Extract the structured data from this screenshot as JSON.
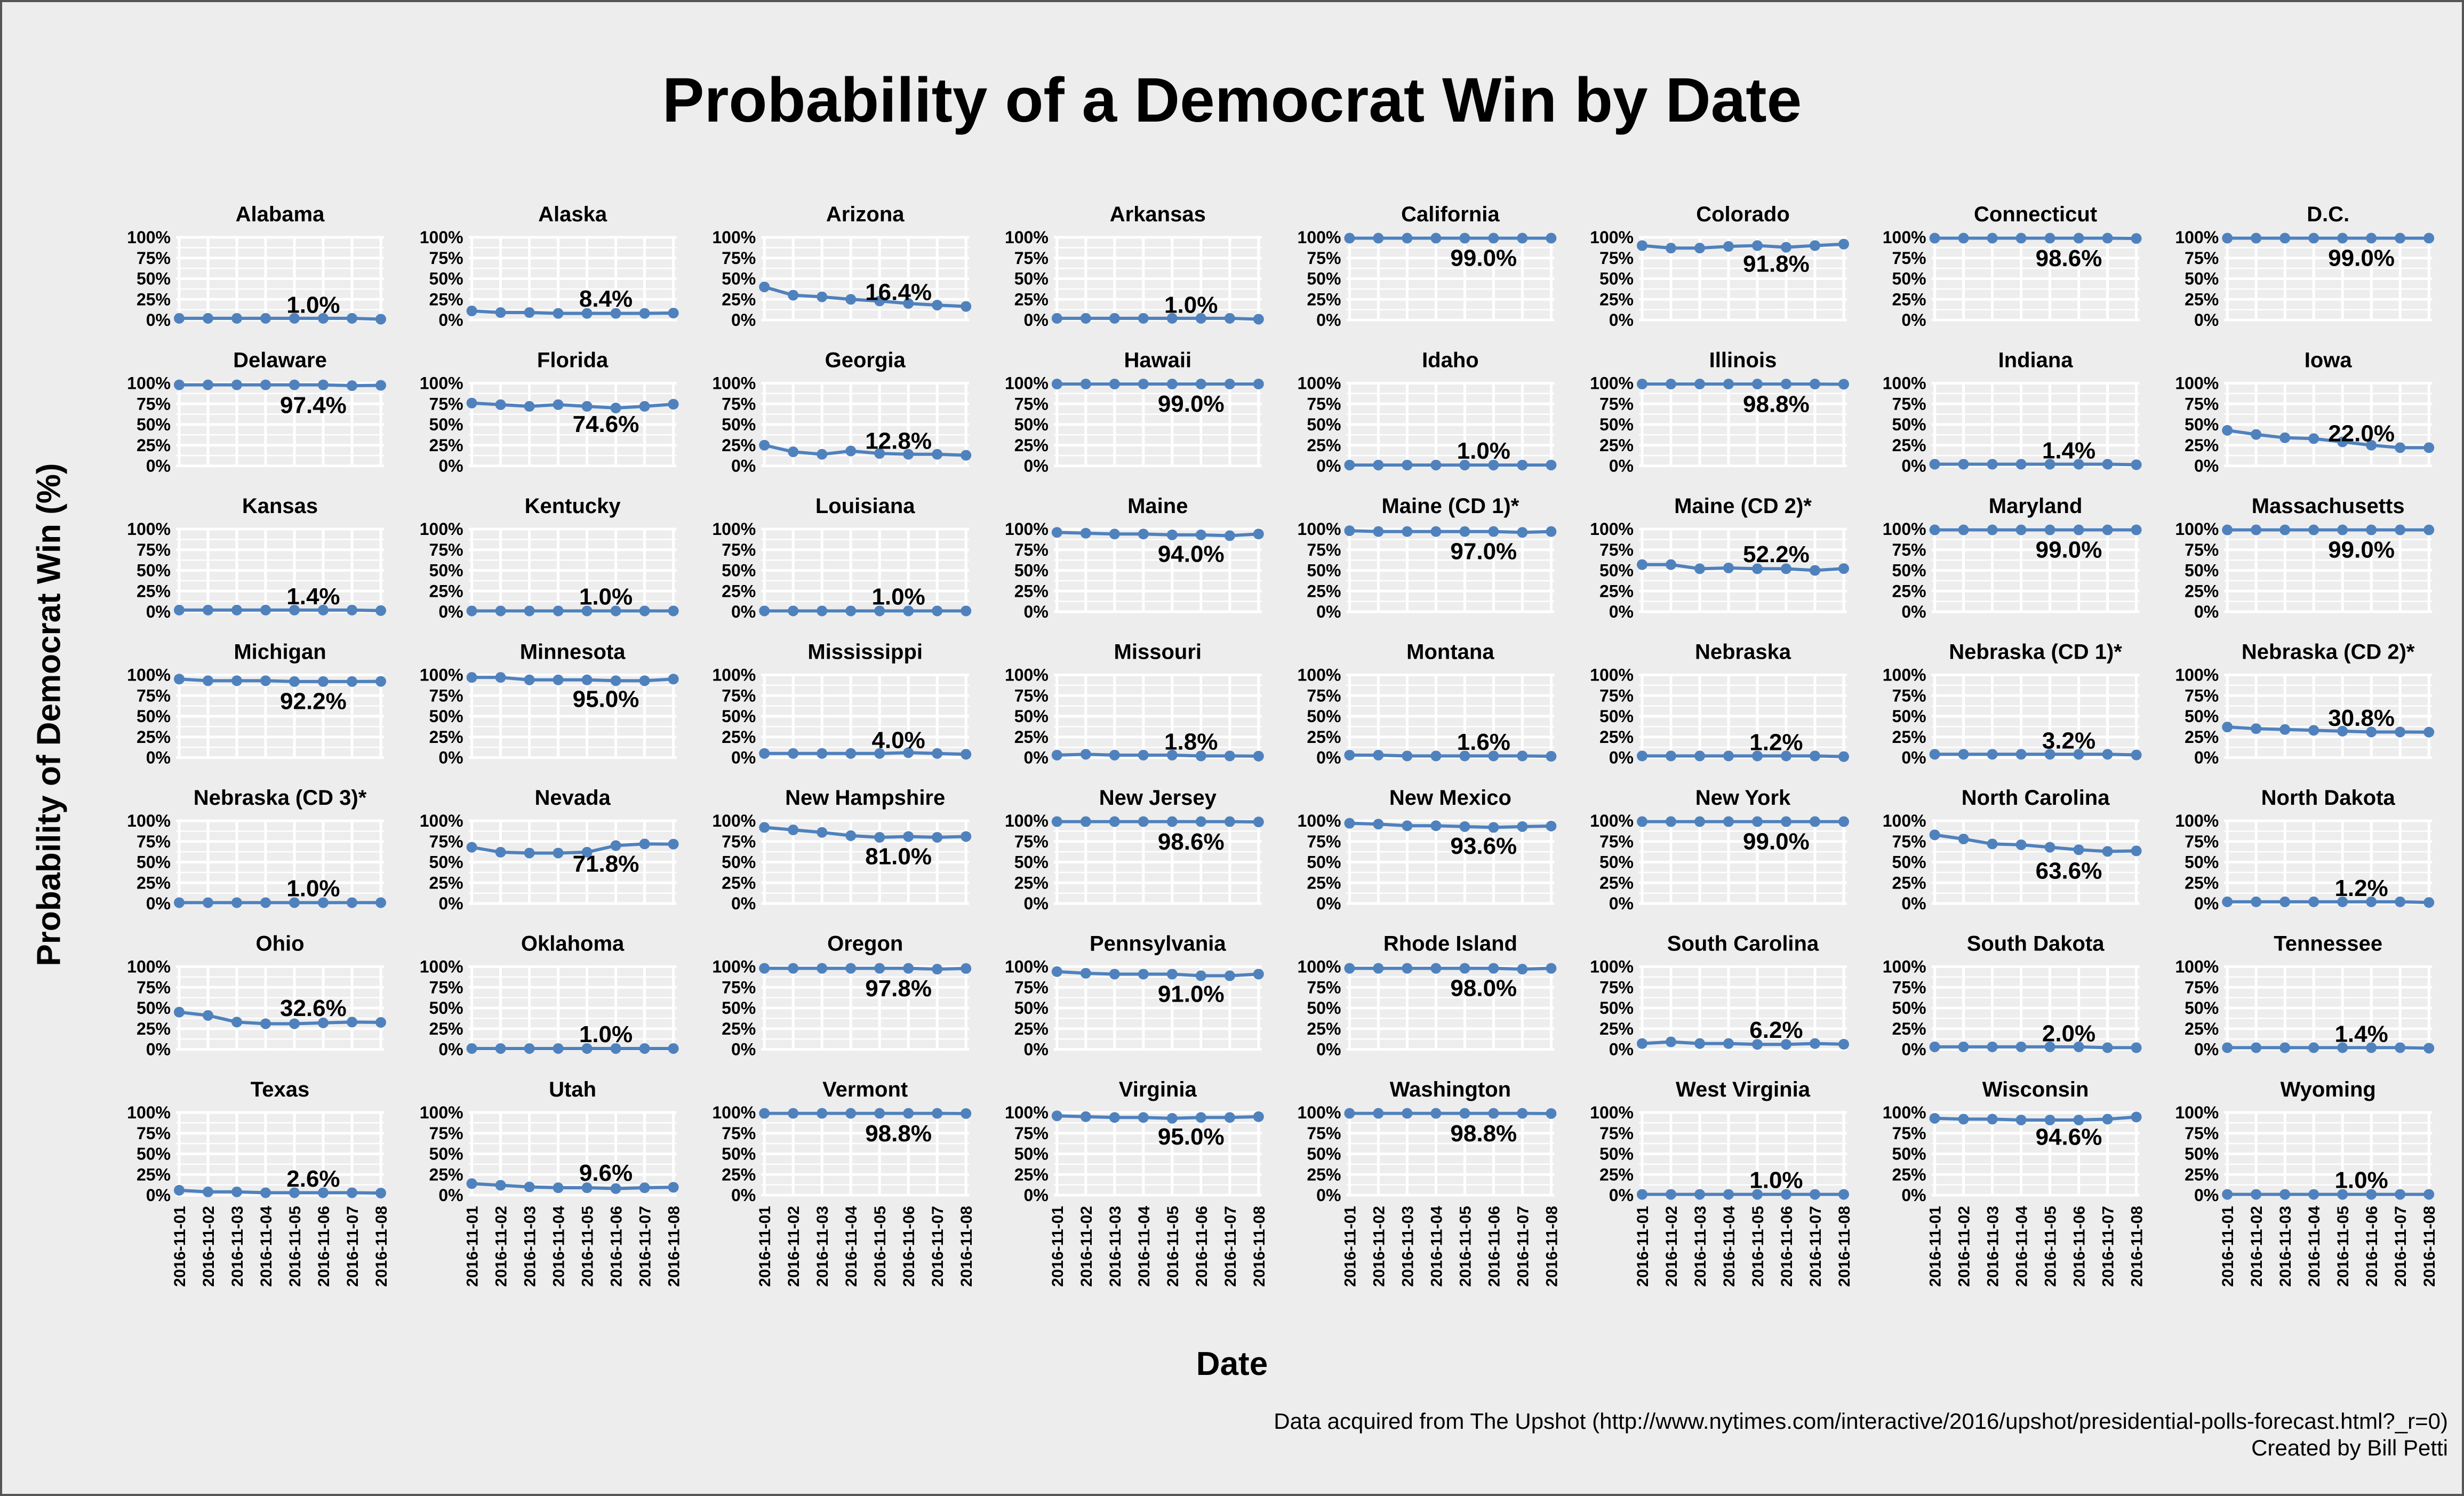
{
  "title": "Probability of a Democrat Win by Date",
  "ylabel": "Probability of Democrat Win (%)",
  "xlabel": "Date",
  "source": "Data acquired from The Upshot (http://www.nytimes.com/interactive/2016/upshot/presidential-polls-forecast.html?_r=0)",
  "credit": "Created by Bill Petti",
  "colors": {
    "line": "#4f81bd",
    "panel": "#ededed",
    "grid": "#ffffff"
  },
  "chart_data": {
    "type": "line",
    "facet_layout": "8 columns x 7 rows",
    "dates": [
      "2016-11-01",
      "2016-11-02",
      "2016-11-03",
      "2016-11-04",
      "2016-11-05",
      "2016-11-06",
      "2016-11-07",
      "2016-11-08"
    ],
    "y_ticks": [
      "100%",
      "75%",
      "50%",
      "25%",
      "0%"
    ],
    "ylim": [
      0,
      100
    ],
    "panels": [
      {
        "name": "Alabama",
        "label": "1.0%",
        "values": [
          2,
          2,
          2,
          2,
          2,
          2,
          2,
          1
        ]
      },
      {
        "name": "Alaska",
        "label": "8.4%",
        "values": [
          11,
          9,
          9,
          8,
          8,
          8,
          8,
          8.4
        ]
      },
      {
        "name": "Arizona",
        "label": "16.4%",
        "values": [
          40,
          30,
          28,
          25,
          23,
          20,
          18,
          16.4
        ]
      },
      {
        "name": "Arkansas",
        "label": "1.0%",
        "values": [
          2,
          2,
          2,
          2,
          2,
          2,
          2,
          1
        ]
      },
      {
        "name": "California",
        "label": "99.0%",
        "values": [
          99,
          99,
          99,
          99,
          99,
          99,
          99,
          99
        ]
      },
      {
        "name": "Colorado",
        "label": "91.8%",
        "values": [
          90,
          87,
          87,
          89,
          90,
          88,
          90,
          91.8
        ]
      },
      {
        "name": "Connecticut",
        "label": "98.6%",
        "values": [
          99,
          99,
          99,
          99,
          99,
          99,
          99,
          98.6
        ]
      },
      {
        "name": "D.C.",
        "label": "99.0%",
        "values": [
          99,
          99,
          99,
          99,
          99,
          99,
          99,
          99
        ]
      },
      {
        "name": "Delaware",
        "label": "97.4%",
        "values": [
          98,
          98,
          98,
          98,
          98,
          98,
          97,
          97.4
        ]
      },
      {
        "name": "Florida",
        "label": "74.6%",
        "values": [
          76,
          74,
          72,
          74,
          72,
          70,
          72,
          74.6
        ]
      },
      {
        "name": "Georgia",
        "label": "12.8%",
        "values": [
          25,
          17,
          14,
          18,
          15,
          14,
          14,
          12.8
        ]
      },
      {
        "name": "Hawaii",
        "label": "99.0%",
        "values": [
          99,
          99,
          99,
          99,
          99,
          99,
          99,
          99
        ]
      },
      {
        "name": "Idaho",
        "label": "1.0%",
        "values": [
          1,
          1,
          1,
          1,
          1,
          1,
          1,
          1
        ]
      },
      {
        "name": "Illinois",
        "label": "98.8%",
        "values": [
          99,
          99,
          99,
          99,
          99,
          99,
          99,
          98.8
        ]
      },
      {
        "name": "Indiana",
        "label": "1.4%",
        "values": [
          2,
          2,
          2,
          2,
          2,
          2,
          2,
          1.4
        ]
      },
      {
        "name": "Iowa",
        "label": "22.0%",
        "values": [
          43,
          38,
          34,
          33,
          29,
          25,
          22,
          22
        ]
      },
      {
        "name": "Kansas",
        "label": "1.4%",
        "values": [
          2,
          2,
          2,
          2,
          2,
          2,
          2,
          1.4
        ]
      },
      {
        "name": "Kentucky",
        "label": "1.0%",
        "values": [
          1,
          1,
          1,
          1,
          1,
          1,
          1,
          1
        ]
      },
      {
        "name": "Louisiana",
        "label": "1.0%",
        "values": [
          1,
          1,
          1,
          1,
          1,
          1,
          1,
          1
        ]
      },
      {
        "name": "Maine",
        "label": "94.0%",
        "values": [
          96,
          95,
          94,
          94,
          93,
          93,
          92,
          94
        ]
      },
      {
        "name": "Maine (CD 1)*",
        "label": "97.0%",
        "values": [
          98,
          97,
          97,
          97,
          97,
          97,
          96,
          97
        ]
      },
      {
        "name": "Maine (CD 2)*",
        "label": "52.2%",
        "values": [
          57,
          57,
          52,
          53,
          52,
          52,
          50,
          52.2
        ]
      },
      {
        "name": "Maryland",
        "label": "99.0%",
        "values": [
          99,
          99,
          99,
          99,
          99,
          99,
          99,
          99
        ]
      },
      {
        "name": "Massachusetts",
        "label": "99.0%",
        "values": [
          99,
          99,
          99,
          99,
          99,
          99,
          99,
          99
        ]
      },
      {
        "name": "Michigan",
        "label": "92.2%",
        "values": [
          95,
          93,
          93,
          93,
          92,
          92,
          92,
          92.2
        ]
      },
      {
        "name": "Minnesota",
        "label": "95.0%",
        "values": [
          97,
          97,
          94,
          94,
          94,
          93,
          93,
          95
        ]
      },
      {
        "name": "Mississippi",
        "label": "4.0%",
        "values": [
          5,
          5,
          5,
          5,
          5,
          6,
          5,
          4
        ]
      },
      {
        "name": "Missouri",
        "label": "1.8%",
        "values": [
          3,
          4,
          3,
          3,
          3,
          2,
          2,
          1.8
        ]
      },
      {
        "name": "Montana",
        "label": "1.6%",
        "values": [
          3,
          3,
          2,
          2,
          2,
          2,
          2,
          1.6
        ]
      },
      {
        "name": "Nebraska",
        "label": "1.2%",
        "values": [
          2,
          2,
          2,
          2,
          2,
          2,
          2,
          1.2
        ]
      },
      {
        "name": "Nebraska (CD 1)*",
        "label": "3.2%",
        "values": [
          4,
          4,
          4,
          4,
          4,
          4,
          4,
          3.2
        ]
      },
      {
        "name": "Nebraska (CD 2)*",
        "label": "30.8%",
        "values": [
          37,
          35,
          34,
          33,
          32,
          31,
          31,
          30.8
        ]
      },
      {
        "name": "Nebraska (CD 3)*",
        "label": "1.0%",
        "values": [
          1,
          1,
          1,
          1,
          1,
          1,
          1,
          1
        ]
      },
      {
        "name": "Nevada",
        "label": "71.8%",
        "values": [
          68,
          62,
          61,
          61,
          62,
          70,
          72,
          71.8
        ]
      },
      {
        "name": "New Hampshire",
        "label": "81.0%",
        "values": [
          92,
          89,
          86,
          82,
          80,
          81,
          80,
          81
        ]
      },
      {
        "name": "New Jersey",
        "label": "98.6%",
        "values": [
          99,
          99,
          99,
          99,
          99,
          99,
          99,
          98.6
        ]
      },
      {
        "name": "New Mexico",
        "label": "93.6%",
        "values": [
          97,
          96,
          94,
          94,
          93,
          92,
          93,
          93.6
        ]
      },
      {
        "name": "New York",
        "label": "99.0%",
        "values": [
          99,
          99,
          99,
          99,
          99,
          99,
          99,
          99
        ]
      },
      {
        "name": "North Carolina",
        "label": "63.6%",
        "values": [
          83,
          78,
          72,
          71,
          68,
          65,
          63,
          63.6
        ]
      },
      {
        "name": "North Dakota",
        "label": "1.2%",
        "values": [
          2,
          2,
          2,
          2,
          2,
          2,
          2,
          1.2
        ]
      },
      {
        "name": "Ohio",
        "label": "32.6%",
        "values": [
          45,
          41,
          33,
          31,
          31,
          32,
          33,
          32.6
        ]
      },
      {
        "name": "Oklahoma",
        "label": "1.0%",
        "values": [
          1,
          1,
          1,
          1,
          1,
          1,
          1,
          1
        ]
      },
      {
        "name": "Oregon",
        "label": "97.8%",
        "values": [
          98,
          98,
          98,
          98,
          98,
          98,
          97,
          97.8
        ]
      },
      {
        "name": "Pennsylvania",
        "label": "91.0%",
        "values": [
          94,
          92,
          91,
          91,
          91,
          89,
          89,
          91
        ]
      },
      {
        "name": "Rhode Island",
        "label": "98.0%",
        "values": [
          98,
          98,
          98,
          98,
          98,
          98,
          97,
          98
        ]
      },
      {
        "name": "South Carolina",
        "label": "6.2%",
        "values": [
          7,
          9,
          7,
          7,
          6,
          6,
          7,
          6.2
        ]
      },
      {
        "name": "South Dakota",
        "label": "2.0%",
        "values": [
          3,
          3,
          3,
          3,
          3,
          3,
          2,
          2
        ]
      },
      {
        "name": "Tennessee",
        "label": "1.4%",
        "values": [
          2,
          2,
          2,
          2,
          2,
          2,
          2,
          1.4
        ]
      },
      {
        "name": "Texas",
        "label": "2.6%",
        "values": [
          6,
          4,
          4,
          3,
          3,
          3,
          3,
          2.6
        ]
      },
      {
        "name": "Utah",
        "label": "9.6%",
        "values": [
          14,
          12,
          10,
          9,
          9,
          8,
          9,
          9.6
        ]
      },
      {
        "name": "Vermont",
        "label": "98.8%",
        "values": [
          99,
          99,
          99,
          99,
          99,
          99,
          99,
          98.8
        ]
      },
      {
        "name": "Virginia",
        "label": "95.0%",
        "values": [
          96,
          95,
          94,
          94,
          93,
          94,
          94,
          95
        ]
      },
      {
        "name": "Washington",
        "label": "98.8%",
        "values": [
          99,
          99,
          99,
          99,
          99,
          99,
          99,
          98.8
        ]
      },
      {
        "name": "West Virginia",
        "label": "1.0%",
        "values": [
          1,
          1,
          1,
          1,
          1,
          1,
          1,
          1
        ]
      },
      {
        "name": "Wisconsin",
        "label": "94.6%",
        "values": [
          93,
          92,
          92,
          91,
          91,
          91,
          92,
          94.6
        ]
      },
      {
        "name": "Wyoming",
        "label": "1.0%",
        "values": [
          1,
          1,
          1,
          1,
          1,
          1,
          1,
          1
        ]
      }
    ]
  }
}
